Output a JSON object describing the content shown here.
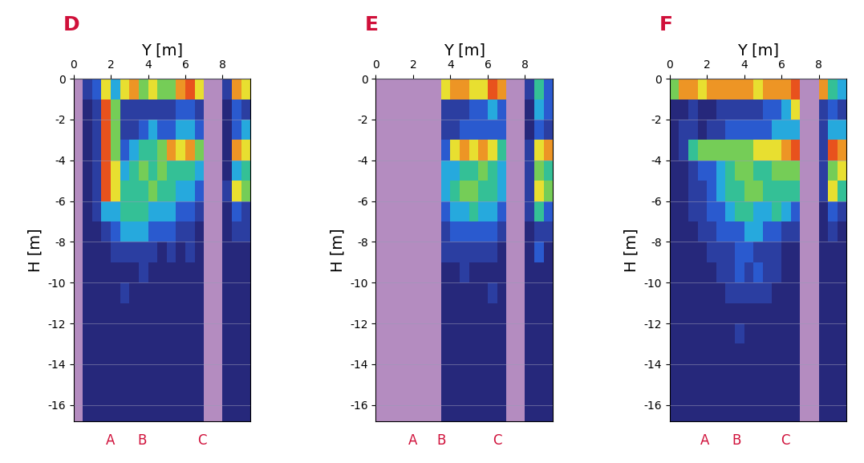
{
  "chart_data": [
    {
      "type": "heatmap",
      "title": "D",
      "xlabel": "Y [m]",
      "ylabel": "H [m]",
      "xlim": [
        0,
        9.5
      ],
      "ylim": [
        -16.8,
        0
      ],
      "xticks": [
        0,
        2,
        4,
        6,
        8
      ],
      "yticks": [
        0,
        -2,
        -4,
        -6,
        -8,
        -10,
        -12,
        -14,
        -16
      ],
      "grid": true,
      "color_range": [
        0,
        10
      ],
      "cell_y_edges": [
        0,
        0.5,
        1,
        1.5,
        2,
        2.5,
        3,
        3.5,
        4,
        4.5,
        5,
        5.5,
        6,
        6.5,
        7,
        7.5,
        8,
        8.5,
        9,
        9.5
      ],
      "cell_h_edges": [
        0,
        -1,
        -2,
        -3,
        -4,
        -5,
        -6,
        -7,
        -8,
        -9,
        -10,
        -11,
        -12,
        -13,
        -14,
        -15,
        -16,
        -17
      ],
      "cells": [
        [
          null,
          2,
          3,
          7,
          4,
          7,
          8,
          6,
          7,
          6,
          6,
          8,
          9,
          7,
          null,
          null,
          2,
          8,
          7
        ],
        [
          null,
          1,
          2,
          9,
          6,
          2,
          2,
          2,
          2,
          2,
          2,
          3,
          3,
          2,
          null,
          null,
          1,
          3,
          2
        ],
        [
          null,
          1,
          2,
          9,
          6,
          2,
          2,
          3,
          4,
          3,
          3,
          4,
          4,
          3,
          null,
          null,
          1,
          3,
          4
        ],
        [
          null,
          1,
          2,
          9,
          6,
          3,
          4,
          5,
          5,
          6,
          8,
          7,
          8,
          6,
          null,
          null,
          1,
          8,
          7
        ],
        [
          null,
          1,
          2,
          9,
          7,
          4,
          5,
          6,
          5,
          6,
          5,
          5,
          5,
          4,
          null,
          null,
          1,
          4,
          5
        ],
        [
          null,
          1,
          2,
          9,
          7,
          5,
          5,
          5,
          6,
          5,
          5,
          4,
          4,
          3,
          null,
          null,
          2,
          7,
          6
        ],
        [
          null,
          1,
          2,
          4,
          4,
          5,
          5,
          5,
          4,
          4,
          4,
          3,
          3,
          2,
          null,
          null,
          1,
          3,
          2
        ],
        [
          null,
          1,
          1,
          2,
          3,
          4,
          4,
          4,
          3,
          3,
          3,
          2,
          2,
          1,
          null,
          null,
          1,
          2,
          2
        ],
        [
          null,
          1,
          1,
          1,
          2,
          2,
          2,
          2,
          2,
          1,
          2,
          1,
          2,
          1,
          null,
          null,
          1,
          1,
          1
        ],
        [
          null,
          1,
          1,
          1,
          1,
          1,
          1,
          2,
          1,
          1,
          1,
          1,
          1,
          1,
          null,
          null,
          1,
          1,
          1
        ],
        [
          null,
          1,
          1,
          1,
          1,
          2,
          1,
          1,
          1,
          1,
          1,
          1,
          1,
          1,
          null,
          null,
          1,
          1,
          1
        ],
        [
          null,
          1,
          1,
          1,
          1,
          1,
          1,
          1,
          1,
          1,
          1,
          1,
          1,
          1,
          null,
          null,
          1,
          1,
          1
        ],
        [
          null,
          1,
          1,
          1,
          1,
          1,
          1,
          1,
          1,
          1,
          1,
          1,
          1,
          1,
          null,
          null,
          1,
          1,
          1
        ],
        [
          null,
          1,
          1,
          1,
          1,
          1,
          1,
          1,
          1,
          1,
          1,
          1,
          1,
          1,
          null,
          null,
          1,
          1,
          1
        ],
        [
          null,
          1,
          1,
          1,
          1,
          1,
          1,
          1,
          1,
          1,
          1,
          1,
          1,
          1,
          null,
          null,
          1,
          1,
          1
        ],
        [
          null,
          1,
          1,
          1,
          1,
          1,
          1,
          1,
          1,
          1,
          1,
          1,
          1,
          1,
          null,
          null,
          1,
          1,
          1
        ],
        [
          null,
          1,
          1,
          1,
          1,
          1,
          1,
          1,
          1,
          1,
          1,
          1,
          1,
          1,
          null,
          null,
          1,
          1,
          1
        ]
      ],
      "markers": [
        {
          "label": "A",
          "y": 2.0
        },
        {
          "label": "B",
          "y": 3.7
        },
        {
          "label": "C",
          "y": 6.9
        }
      ]
    },
    {
      "type": "heatmap",
      "title": "E",
      "xlabel": "Y [m]",
      "ylabel": "H [m]",
      "xlim": [
        0,
        9.5
      ],
      "ylim": [
        -16.8,
        0
      ],
      "xticks": [
        0,
        2,
        4,
        6,
        8
      ],
      "yticks": [
        0,
        -2,
        -4,
        -6,
        -8,
        -10,
        -12,
        -14,
        -16
      ],
      "grid": true,
      "color_range": [
        0,
        10
      ],
      "cell_y_edges": [
        0,
        0.5,
        1,
        1.5,
        2,
        2.5,
        3,
        3.5,
        4,
        4.5,
        5,
        5.5,
        6,
        6.5,
        7,
        7.5,
        8,
        8.5,
        9,
        9.5
      ],
      "cell_h_edges": [
        0,
        -1,
        -2,
        -3,
        -4,
        -5,
        -6,
        -7,
        -8,
        -9,
        -10,
        -11,
        -12,
        -13,
        -14,
        -15,
        -16,
        -17
      ],
      "cells": [
        [
          null,
          null,
          null,
          null,
          null,
          null,
          null,
          7,
          8,
          8,
          7,
          7,
          9,
          8,
          null,
          null,
          2,
          5,
          3
        ],
        [
          null,
          null,
          null,
          null,
          null,
          null,
          null,
          2,
          2,
          2,
          3,
          3,
          4,
          3,
          null,
          null,
          1,
          4,
          3
        ],
        [
          null,
          null,
          null,
          null,
          null,
          null,
          null,
          2,
          2,
          3,
          3,
          3,
          3,
          3,
          null,
          null,
          1,
          3,
          2
        ],
        [
          null,
          null,
          null,
          null,
          null,
          null,
          null,
          3,
          7,
          8,
          7,
          8,
          7,
          5,
          null,
          null,
          2,
          7,
          8
        ],
        [
          null,
          null,
          null,
          null,
          null,
          null,
          null,
          4,
          4,
          5,
          5,
          6,
          5,
          4,
          null,
          null,
          2,
          6,
          5
        ],
        [
          null,
          null,
          null,
          null,
          null,
          null,
          null,
          4,
          5,
          6,
          6,
          5,
          5,
          4,
          null,
          null,
          2,
          7,
          6
        ],
        [
          null,
          null,
          null,
          null,
          null,
          null,
          null,
          3,
          4,
          4,
          5,
          4,
          4,
          3,
          null,
          null,
          2,
          5,
          3
        ],
        [
          null,
          null,
          null,
          null,
          null,
          null,
          null,
          2,
          3,
          3,
          3,
          3,
          3,
          2,
          null,
          null,
          1,
          2,
          2
        ],
        [
          null,
          null,
          null,
          null,
          null,
          null,
          null,
          2,
          2,
          2,
          2,
          2,
          2,
          1,
          null,
          null,
          1,
          3,
          1
        ],
        [
          null,
          null,
          null,
          null,
          null,
          null,
          null,
          1,
          1,
          2,
          1,
          1,
          1,
          1,
          null,
          null,
          1,
          1,
          1
        ],
        [
          null,
          null,
          null,
          null,
          null,
          null,
          null,
          1,
          1,
          1,
          1,
          1,
          2,
          1,
          null,
          null,
          1,
          1,
          1
        ],
        [
          null,
          null,
          null,
          null,
          null,
          null,
          null,
          1,
          1,
          1,
          1,
          1,
          1,
          1,
          null,
          null,
          1,
          1,
          1
        ],
        [
          null,
          null,
          null,
          null,
          null,
          null,
          null,
          1,
          1,
          1,
          1,
          1,
          1,
          1,
          null,
          null,
          1,
          1,
          1
        ],
        [
          null,
          null,
          null,
          null,
          null,
          null,
          null,
          1,
          1,
          1,
          1,
          1,
          1,
          1,
          null,
          null,
          1,
          1,
          1
        ],
        [
          null,
          null,
          null,
          null,
          null,
          null,
          null,
          1,
          1,
          1,
          1,
          1,
          1,
          1,
          null,
          null,
          1,
          1,
          1
        ],
        [
          null,
          null,
          null,
          null,
          null,
          null,
          null,
          1,
          1,
          1,
          1,
          1,
          1,
          1,
          null,
          null,
          1,
          1,
          1
        ],
        [
          null,
          null,
          null,
          null,
          null,
          null,
          null,
          1,
          1,
          1,
          1,
          1,
          1,
          1,
          null,
          null,
          1,
          1,
          1
        ]
      ],
      "markers": [
        {
          "label": "A",
          "y": 2.0
        },
        {
          "label": "B",
          "y": 3.5
        },
        {
          "label": "C",
          "y": 6.5
        }
      ]
    },
    {
      "type": "heatmap",
      "title": "F",
      "xlabel": "Y [m]",
      "ylabel": "H [m]",
      "xlim": [
        0,
        9.5
      ],
      "ylim": [
        -16.8,
        0
      ],
      "xticks": [
        0,
        2,
        4,
        6,
        8
      ],
      "yticks": [
        0,
        -2,
        -4,
        -6,
        -8,
        -10,
        -12,
        -14,
        -16
      ],
      "grid": true,
      "color_range": [
        0,
        10
      ],
      "cell_y_edges": [
        0,
        0.5,
        1,
        1.5,
        2,
        2.5,
        3,
        3.5,
        4,
        4.5,
        5,
        5.5,
        6,
        6.5,
        7,
        7.5,
        8,
        8.5,
        9,
        9.5
      ],
      "cell_h_edges": [
        0,
        -1,
        -2,
        -3,
        -4,
        -5,
        -6,
        -7,
        -8,
        -9,
        -10,
        -11,
        -12,
        -13,
        -14,
        -15,
        -16,
        -17
      ],
      "cells": [
        [
          6,
          8,
          8,
          7,
          8,
          8,
          8,
          8,
          8,
          7,
          8,
          8,
          8,
          9,
          null,
          null,
          8,
          5,
          4
        ],
        [
          1,
          1,
          2,
          1,
          1,
          2,
          2,
          2,
          2,
          2,
          3,
          3,
          4,
          7,
          null,
          null,
          2,
          3,
          2
        ],
        [
          1,
          2,
          2,
          1,
          2,
          2,
          3,
          3,
          3,
          3,
          3,
          4,
          4,
          4,
          null,
          null,
          2,
          4,
          4
        ],
        [
          1,
          2,
          5,
          6,
          6,
          6,
          6,
          6,
          6,
          7,
          7,
          7,
          8,
          9,
          null,
          null,
          2,
          9,
          8
        ],
        [
          1,
          1,
          2,
          3,
          3,
          4,
          5,
          6,
          6,
          5,
          5,
          6,
          6,
          6,
          null,
          null,
          2,
          6,
          7
        ],
        [
          1,
          1,
          2,
          2,
          3,
          4,
          5,
          5,
          6,
          6,
          5,
          5,
          5,
          5,
          null,
          null,
          2,
          7,
          5
        ],
        [
          1,
          1,
          2,
          2,
          3,
          3,
          4,
          5,
          5,
          4,
          4,
          5,
          4,
          3,
          null,
          null,
          1,
          3,
          2
        ],
        [
          1,
          1,
          1,
          2,
          2,
          3,
          3,
          3,
          4,
          4,
          3,
          3,
          2,
          2,
          null,
          null,
          1,
          2,
          1
        ],
        [
          1,
          1,
          1,
          1,
          2,
          2,
          2,
          3,
          3,
          2,
          2,
          2,
          1,
          1,
          null,
          null,
          1,
          1,
          1
        ],
        [
          1,
          1,
          1,
          1,
          1,
          2,
          2,
          3,
          2,
          3,
          2,
          2,
          1,
          1,
          null,
          null,
          1,
          1,
          1
        ],
        [
          1,
          1,
          1,
          1,
          1,
          1,
          2,
          2,
          2,
          2,
          2,
          1,
          1,
          1,
          null,
          null,
          1,
          1,
          1
        ],
        [
          1,
          1,
          1,
          1,
          1,
          1,
          1,
          1,
          1,
          1,
          1,
          1,
          1,
          1,
          null,
          null,
          1,
          1,
          1
        ],
        [
          1,
          1,
          1,
          1,
          1,
          1,
          1,
          2,
          1,
          1,
          1,
          1,
          1,
          1,
          null,
          null,
          1,
          1,
          1
        ],
        [
          1,
          1,
          1,
          1,
          1,
          1,
          1,
          1,
          1,
          1,
          1,
          1,
          1,
          1,
          null,
          null,
          1,
          1,
          1
        ],
        [
          1,
          1,
          1,
          1,
          1,
          1,
          1,
          1,
          1,
          1,
          1,
          1,
          1,
          1,
          null,
          null,
          1,
          1,
          1
        ],
        [
          1,
          1,
          1,
          1,
          1,
          1,
          1,
          1,
          1,
          1,
          1,
          1,
          1,
          1,
          null,
          null,
          1,
          1,
          1
        ],
        [
          1,
          1,
          1,
          1,
          1,
          1,
          1,
          1,
          1,
          1,
          1,
          1,
          1,
          1,
          null,
          null,
          1,
          1,
          1
        ]
      ],
      "markers": [
        {
          "label": "A",
          "y": 1.9
        },
        {
          "label": "B",
          "y": 3.6
        },
        {
          "label": "C",
          "y": 6.2
        }
      ]
    }
  ]
}
